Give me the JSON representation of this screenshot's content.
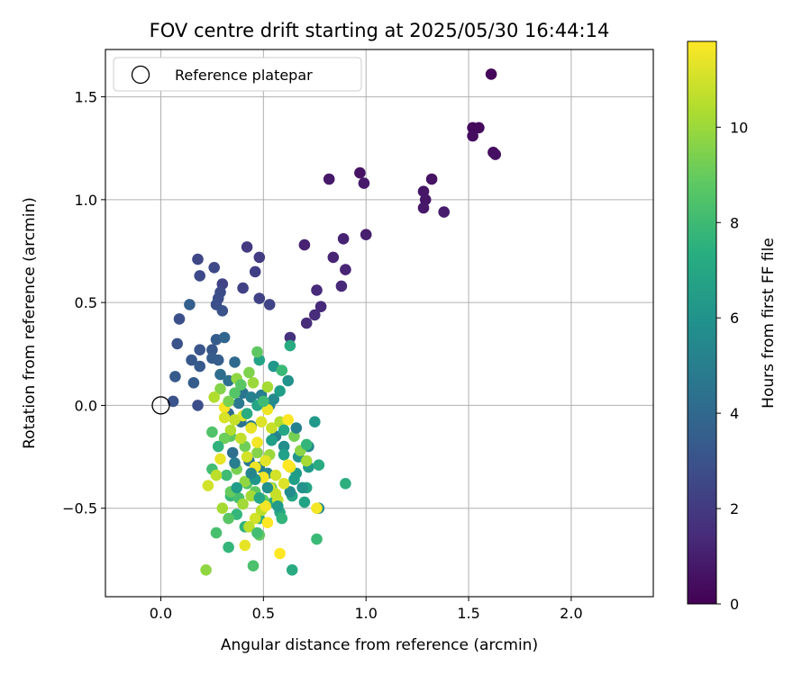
{
  "chart_data": {
    "type": "scatter",
    "title": "FOV centre drift starting at 2025/05/30 16:44:14",
    "xlabel": "Angular distance from reference (arcmin)",
    "ylabel": "Rotation from reference (arcmin)",
    "xlim": [
      -0.27,
      2.4
    ],
    "ylim": [
      -0.93,
      1.73
    ],
    "x_ticks": [
      0.0,
      0.5,
      1.0,
      1.5,
      2.0
    ],
    "x_tick_labels": [
      "0.0",
      "0.5",
      "1.0",
      "1.5",
      "2.0"
    ],
    "y_ticks": [
      -0.5,
      0.0,
      0.5,
      1.0,
      1.5
    ],
    "y_tick_labels": [
      "−0.5",
      "0.0",
      "0.5",
      "1.0",
      "1.5"
    ],
    "grid": true,
    "legend": {
      "position": "top-left",
      "entries": [
        "Reference platepar"
      ]
    },
    "reference_point": {
      "x": 0.0,
      "y": 0.0
    },
    "colorbar": {
      "label": "Hours from first FF file",
      "colormap": "viridis",
      "range": [
        0,
        11.8
      ],
      "ticks": [
        0,
        2,
        4,
        6,
        8,
        10
      ],
      "tick_labels": [
        "0",
        "2",
        "4",
        "6",
        "8",
        "10"
      ]
    },
    "series": [
      {
        "fields": [
          "x",
          "y",
          "hours"
        ],
        "points": [
          [
            1.61,
            1.61,
            0.2
          ],
          [
            1.52,
            1.35,
            0.3
          ],
          [
            1.55,
            1.35,
            0.3
          ],
          [
            1.52,
            1.31,
            0.4
          ],
          [
            1.62,
            1.23,
            0.4
          ],
          [
            1.63,
            1.22,
            0.5
          ],
          [
            0.97,
            1.13,
            0.6
          ],
          [
            0.82,
            1.1,
            0.8
          ],
          [
            0.99,
            1.08,
            0.8
          ],
          [
            1.32,
            1.1,
            0.6
          ],
          [
            1.28,
            1.04,
            0.7
          ],
          [
            1.29,
            1.0,
            0.7
          ],
          [
            1.28,
            0.96,
            0.8
          ],
          [
            1.38,
            0.94,
            0.9
          ],
          [
            1.0,
            0.83,
            1.0
          ],
          [
            0.89,
            0.81,
            1.1
          ],
          [
            0.7,
            0.78,
            1.1
          ],
          [
            0.84,
            0.72,
            1.2
          ],
          [
            0.9,
            0.66,
            1.2
          ],
          [
            0.88,
            0.58,
            1.3
          ],
          [
            0.76,
            0.56,
            1.4
          ],
          [
            0.78,
            0.48,
            1.4
          ],
          [
            0.75,
            0.44,
            1.5
          ],
          [
            0.71,
            0.4,
            1.5
          ],
          [
            0.63,
            0.33,
            1.7
          ],
          [
            0.48,
            0.72,
            2.1
          ],
          [
            0.42,
            0.77,
            2.0
          ],
          [
            0.46,
            0.65,
            2.2
          ],
          [
            0.48,
            0.52,
            2.3
          ],
          [
            0.53,
            0.49,
            2.4
          ],
          [
            0.3,
            0.59,
            2.4
          ],
          [
            0.4,
            0.57,
            2.3
          ],
          [
            0.18,
            0.71,
            2.5
          ],
          [
            0.26,
            0.67,
            2.6
          ],
          [
            0.19,
            0.63,
            2.6
          ],
          [
            0.29,
            0.55,
            2.7
          ],
          [
            0.28,
            0.52,
            2.8
          ],
          [
            0.27,
            0.49,
            2.9
          ],
          [
            0.14,
            0.49,
            3.6
          ],
          [
            0.3,
            0.46,
            3.0
          ],
          [
            0.09,
            0.42,
            2.9
          ],
          [
            0.08,
            0.3,
            3.0
          ],
          [
            0.19,
            0.27,
            3.1
          ],
          [
            0.25,
            0.27,
            3.2
          ],
          [
            0.27,
            0.32,
            3.4
          ],
          [
            0.31,
            0.33,
            3.8
          ],
          [
            0.15,
            0.22,
            3.2
          ],
          [
            0.19,
            0.19,
            3.3
          ],
          [
            0.25,
            0.23,
            3.4
          ],
          [
            0.28,
            0.22,
            3.5
          ],
          [
            0.07,
            0.14,
            3.3
          ],
          [
            0.16,
            0.11,
            3.4
          ],
          [
            0.36,
            0.21,
            4.0
          ],
          [
            0.18,
            0.0,
            2.8
          ],
          [
            0.06,
            0.02,
            3.0
          ],
          [
            0.29,
            0.15,
            4.2
          ],
          [
            0.33,
            0.12,
            4.4
          ],
          [
            0.4,
            0.06,
            4.6
          ],
          [
            0.38,
            0.01,
            4.8
          ],
          [
            0.44,
            0.04,
            5.2
          ],
          [
            0.49,
            0.05,
            5.0
          ],
          [
            0.53,
            0.0,
            5.4
          ],
          [
            0.55,
            0.03,
            5.6
          ],
          [
            0.62,
            0.12,
            6.0
          ],
          [
            0.55,
            0.19,
            6.2
          ],
          [
            0.48,
            0.22,
            6.8
          ],
          [
            0.63,
            0.29,
            7.2
          ],
          [
            0.59,
            0.17,
            8.0
          ],
          [
            0.47,
            0.26,
            8.8
          ],
          [
            0.43,
            0.16,
            9.5
          ],
          [
            0.37,
            0.13,
            9.8
          ],
          [
            0.45,
            0.11,
            10.0
          ],
          [
            0.52,
            0.09,
            10.2
          ],
          [
            0.29,
            0.08,
            9.6
          ],
          [
            0.36,
            0.06,
            8.6
          ],
          [
            0.26,
            0.04,
            10.4
          ],
          [
            0.33,
            -0.04,
            4.1
          ],
          [
            0.39,
            -0.08,
            4.5
          ],
          [
            0.44,
            -0.1,
            4.9
          ],
          [
            0.56,
            -0.15,
            5.3
          ],
          [
            0.6,
            -0.2,
            5.8
          ],
          [
            0.67,
            -0.25,
            6.1
          ],
          [
            0.72,
            -0.3,
            6.4
          ],
          [
            0.65,
            -0.36,
            6.6
          ],
          [
            0.71,
            -0.4,
            6.9
          ],
          [
            0.64,
            -0.44,
            7.0
          ],
          [
            0.58,
            -0.52,
            7.1
          ],
          [
            0.55,
            -0.47,
            7.3
          ],
          [
            0.48,
            -0.55,
            7.4
          ],
          [
            0.41,
            -0.59,
            7.6
          ],
          [
            0.37,
            -0.53,
            7.8
          ],
          [
            0.34,
            -0.44,
            7.9
          ],
          [
            0.32,
            -0.34,
            8.1
          ],
          [
            0.35,
            -0.23,
            4.3
          ],
          [
            0.43,
            -0.27,
            4.7
          ],
          [
            0.48,
            -0.3,
            5.1
          ],
          [
            0.52,
            -0.33,
            5.5
          ],
          [
            0.38,
            -0.45,
            8.3
          ],
          [
            0.42,
            -0.38,
            8.5
          ],
          [
            0.46,
            -0.42,
            8.8
          ],
          [
            0.5,
            -0.46,
            9.0
          ],
          [
            0.54,
            -0.4,
            9.1
          ],
          [
            0.63,
            -0.42,
            5.7
          ],
          [
            0.69,
            -0.4,
            6.0
          ],
          [
            0.72,
            -0.2,
            5.5
          ],
          [
            0.75,
            -0.08,
            6.3
          ],
          [
            0.9,
            -0.38,
            7.4
          ],
          [
            0.77,
            -0.29,
            7.2
          ],
          [
            0.66,
            -0.33,
            6.5
          ],
          [
            0.6,
            -0.24,
            6.7
          ],
          [
            0.7,
            -0.47,
            6.8
          ],
          [
            0.77,
            -0.5,
            5.6
          ],
          [
            0.76,
            -0.65,
            8.0
          ],
          [
            0.64,
            -0.8,
            7.2
          ],
          [
            0.45,
            -0.78,
            8.4
          ],
          [
            0.48,
            -0.63,
            8.9
          ],
          [
            0.33,
            -0.69,
            7.8
          ],
          [
            0.27,
            -0.62,
            8.3
          ],
          [
            0.33,
            -0.55,
            8.7
          ],
          [
            0.22,
            -0.8,
            9.8
          ],
          [
            0.25,
            -0.31,
            8.2
          ],
          [
            0.25,
            -0.13,
            8.5
          ],
          [
            0.34,
            -0.15,
            8.8
          ],
          [
            0.41,
            -0.2,
            9.2
          ],
          [
            0.47,
            -0.23,
            9.6
          ],
          [
            0.53,
            -0.24,
            10.0
          ],
          [
            0.37,
            -0.31,
            9.4
          ],
          [
            0.41,
            -0.37,
            9.8
          ],
          [
            0.44,
            -0.44,
            10.2
          ],
          [
            0.49,
            -0.51,
            10.6
          ],
          [
            0.57,
            -0.46,
            10.9
          ],
          [
            0.6,
            -0.38,
            11.2
          ],
          [
            0.63,
            -0.3,
            11.5
          ],
          [
            0.56,
            -0.34,
            11.0
          ],
          [
            0.51,
            -0.27,
            11.3
          ],
          [
            0.47,
            -0.18,
            11.6
          ],
          [
            0.44,
            -0.11,
            11.4
          ],
          [
            0.4,
            -0.05,
            11.2
          ],
          [
            0.36,
            -0.07,
            10.8
          ],
          [
            0.31,
            -0.01,
            11.7
          ],
          [
            0.31,
            -0.06,
            11.1
          ],
          [
            0.34,
            -0.12,
            10.4
          ],
          [
            0.39,
            -0.16,
            10.7
          ],
          [
            0.42,
            -0.25,
            11.0
          ],
          [
            0.46,
            -0.3,
            11.5
          ],
          [
            0.5,
            -0.35,
            11.7
          ],
          [
            0.53,
            -0.4,
            11.3
          ],
          [
            0.56,
            -0.43,
            10.8
          ],
          [
            0.51,
            -0.49,
            11.6
          ],
          [
            0.46,
            -0.55,
            11.0
          ],
          [
            0.43,
            -0.59,
            10.6
          ],
          [
            0.41,
            -0.68,
            11.4
          ],
          [
            0.52,
            -0.57,
            11.8
          ],
          [
            0.58,
            -0.72,
            11.9
          ],
          [
            0.3,
            -0.5,
            10.2
          ],
          [
            0.27,
            -0.34,
            10.6
          ],
          [
            0.23,
            -0.39,
            11.0
          ],
          [
            0.29,
            -0.26,
            11.4
          ],
          [
            0.4,
            -0.48,
            10.1
          ],
          [
            0.52,
            -0.02,
            11.5
          ],
          [
            0.49,
            -0.08,
            11.2
          ],
          [
            0.54,
            -0.11,
            10.8
          ],
          [
            0.58,
            -0.08,
            10.4
          ],
          [
            0.62,
            -0.07,
            11.8
          ],
          [
            0.65,
            -0.15,
            9.3
          ],
          [
            0.68,
            -0.22,
            9.7
          ],
          [
            0.62,
            -0.29,
            11.9
          ],
          [
            0.71,
            -0.27,
            10.2
          ],
          [
            0.76,
            -0.5,
            11.6
          ],
          [
            0.34,
            -0.42,
            9.0
          ],
          [
            0.37,
            -0.4,
            6.5
          ],
          [
            0.46,
            -0.36,
            6.2
          ],
          [
            0.48,
            -0.45,
            7.0
          ],
          [
            0.52,
            -0.4,
            5.9
          ],
          [
            0.57,
            -0.49,
            6.4
          ],
          [
            0.59,
            -0.55,
            7.7
          ],
          [
            0.47,
            -0.62,
            8.2
          ],
          [
            0.31,
            -0.16,
            9.1
          ],
          [
            0.28,
            -0.2,
            7.6
          ],
          [
            0.36,
            -0.28,
            5.0
          ],
          [
            0.44,
            -0.33,
            5.4
          ],
          [
            0.54,
            -0.17,
            6.6
          ],
          [
            0.6,
            -0.12,
            7.0
          ],
          [
            0.66,
            -0.11,
            5.2
          ],
          [
            0.71,
            -0.19,
            7.8
          ],
          [
            0.58,
            0.07,
            6.5
          ],
          [
            0.47,
            0.0,
            6.9
          ],
          [
            0.42,
            -0.04,
            7.3
          ],
          [
            0.5,
            0.02,
            8.1
          ],
          [
            0.39,
            0.1,
            8.7
          ],
          [
            0.33,
            0.02,
            9.4
          ]
        ]
      }
    ]
  }
}
